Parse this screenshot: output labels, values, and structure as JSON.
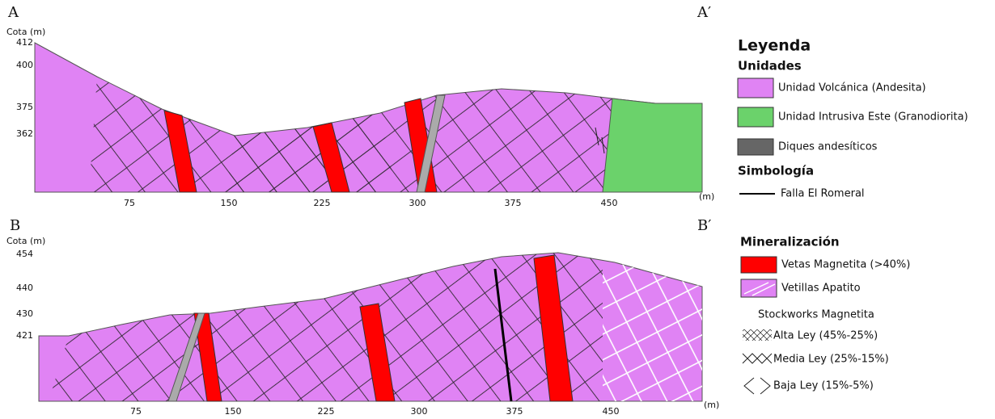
{
  "sections": [
    {
      "start": "A",
      "end": "A′",
      "y_label": "Cota (m)",
      "y_ticks": [
        412,
        400,
        375,
        362
      ],
      "x_ticks": [
        75,
        150,
        225,
        300,
        375,
        450
      ],
      "x_unit": "(m)"
    },
    {
      "start": "B",
      "end": "B′",
      "y_label": "Cota (m)",
      "y_ticks": [
        454,
        440,
        430,
        421
      ],
      "x_ticks": [
        75,
        150,
        225,
        300,
        375,
        450
      ],
      "x_unit": "(m)"
    }
  ],
  "legend": {
    "title": "Leyenda",
    "units_title": "Unidades",
    "units": [
      "Unidad Volcánica (Andesita)",
      "Unidad Intrusiva Este (Granodiorita)",
      "Diques andesíticos"
    ],
    "symbology_title": "Simbología",
    "symbology": [
      "Falla El Romeral"
    ],
    "mineralization_title": "Mineralización",
    "mineralization": [
      "Vetas Magnetita (>40%)",
      "Vetillas Apatito"
    ],
    "stockworks_title": "Stockworks Magnetita",
    "stockworks": [
      "Alta Ley (45%-25%)",
      "Media Ley (25%-15%)",
      "Baja Ley (15%-5%)"
    ]
  }
}
